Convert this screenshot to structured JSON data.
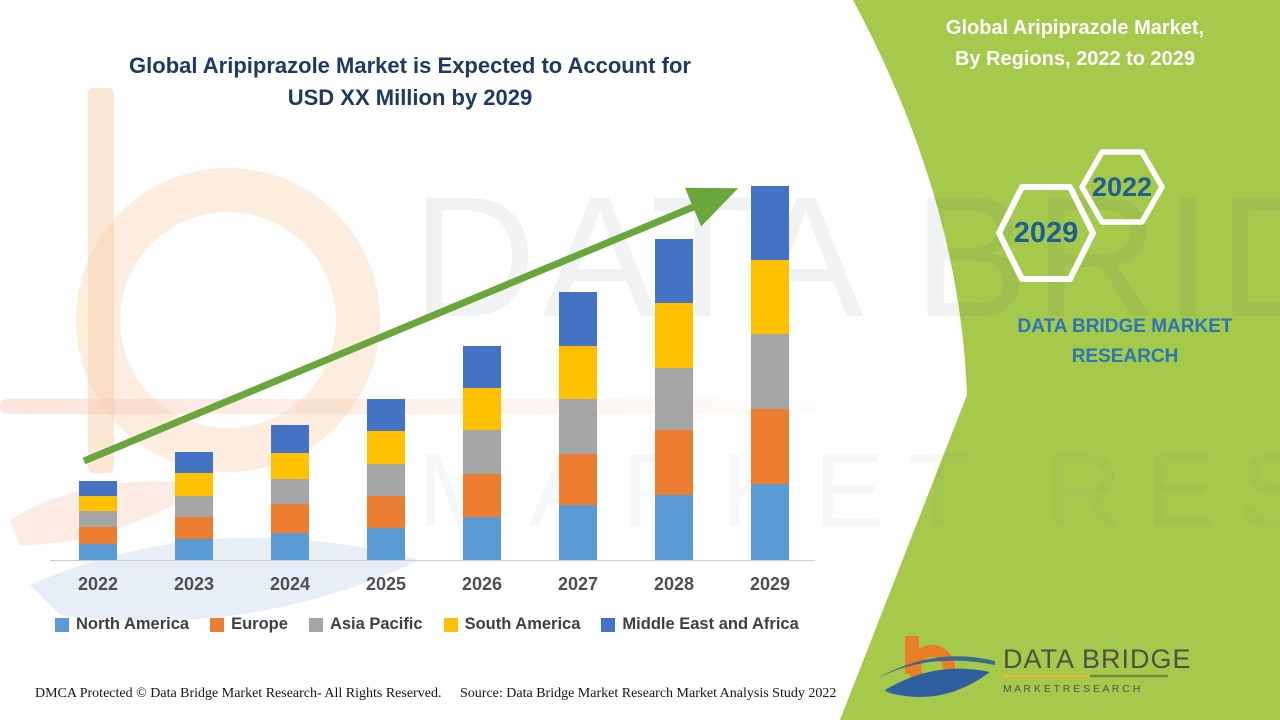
{
  "header": {
    "title_line1": "Global Aripiprazole Market is Expected to Account for",
    "title_line2": "USD XX Million by 2029"
  },
  "side_panel": {
    "title_line1": "Global Aripiprazole Market,",
    "title_line2": "By Regions, 2022 to 2029",
    "hexagon_small_label": "2022",
    "hexagon_large_label": "2029",
    "brand_line1": "DATA BRIDGE MARKET",
    "brand_line2": "RESEARCH"
  },
  "chart_data": {
    "type": "bar",
    "stacked": true,
    "title": "Global Aripiprazole Market is Expected to Account for USD XX Million by 2029",
    "xlabel": "",
    "ylabel": "",
    "value_axis_visible": false,
    "value_note": "values masked as 'USD XX Million' in source; series values are relative height units read from pixels",
    "categories": [
      "2022",
      "2023",
      "2024",
      "2025",
      "2026",
      "2027",
      "2028",
      "2029"
    ],
    "series": [
      {
        "name": "North America",
        "color": "#5B9BD5",
        "values": [
          16,
          21,
          27,
          32,
          43,
          55,
          65,
          76
        ]
      },
      {
        "name": "Europe",
        "color": "#ED7D31",
        "values": [
          17,
          22,
          29,
          32,
          43,
          51,
          65,
          75
        ]
      },
      {
        "name": "Asia Pacific",
        "color": "#A5A5A5",
        "values": [
          16,
          21,
          25,
          32,
          44,
          55,
          62,
          75
        ]
      },
      {
        "name": "South America",
        "color": "#FFC000",
        "values": [
          15,
          23,
          26,
          33,
          42,
          53,
          65,
          74
        ]
      },
      {
        "name": "Middle East and Africa",
        "color": "#4472C4",
        "values": [
          15,
          21,
          28,
          32,
          42,
          54,
          64,
          74
        ]
      }
    ],
    "totals_relative": [
      79,
      108,
      135,
      161,
      214,
      268,
      321,
      374
    ],
    "trend_arrow": {
      "present": true,
      "color": "#69A63C"
    },
    "legend_position": "bottom",
    "grid": false
  },
  "watermark": {
    "line1": "DATA BRIDGE",
    "line2": "MARKET RESEARCH"
  },
  "logo": {
    "name": "DATA BRIDGE",
    "subname": "M A R K E T   R E S E A R C H"
  },
  "footer": {
    "left": "DMCA Protected © Data Bridge Market Research- All Rights Reserved.",
    "right": "Source: Data Bridge Market Research Market Analysis Study 2022"
  },
  "colors": {
    "panel_green": "#A4C94B",
    "title_navy": "#1F3864",
    "arrow_green": "#69A63C",
    "hexagon_year_blue": "#1E6094",
    "brand_blue": "#2E75B6",
    "axis_label_gray": "#4E4F55",
    "legend_text": "#3E3F47"
  }
}
